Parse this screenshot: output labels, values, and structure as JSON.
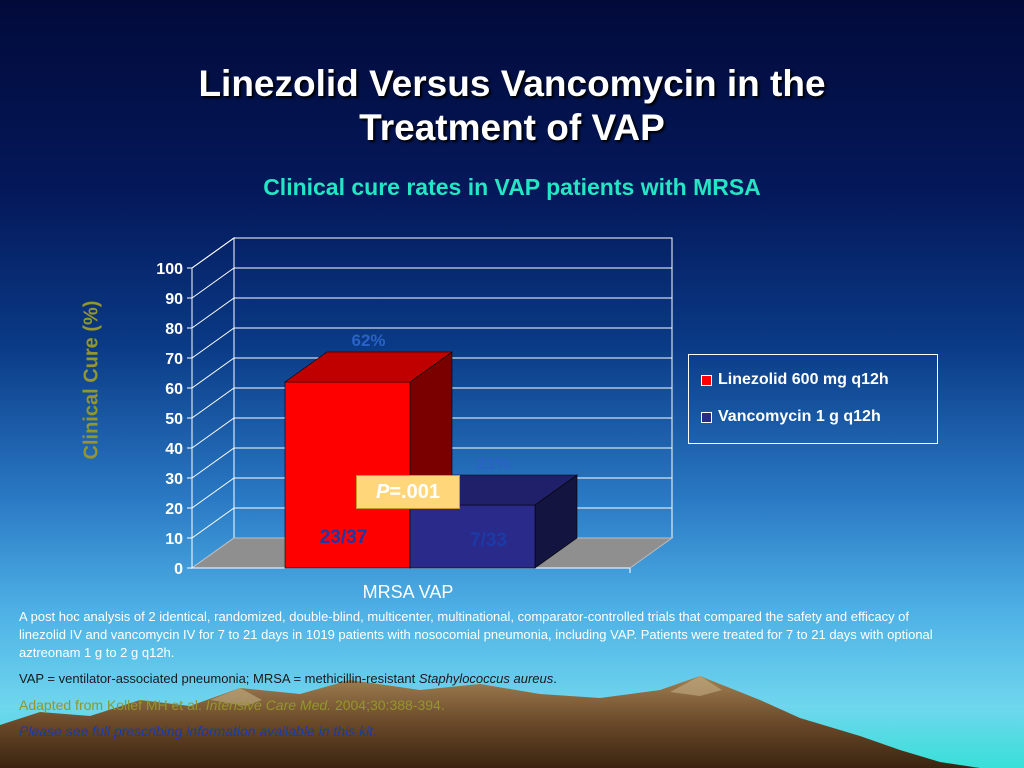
{
  "slide": {
    "title_line1": "Linezolid Versus Vancomycin in the",
    "title_line2": "Treatment of VAP",
    "subtitle": "Clinical cure rates in VAP patients with MRSA",
    "p_value_label": "P",
    "p_value_rest": "=.001"
  },
  "chart_data": {
    "type": "bar",
    "title": "",
    "xlabel": "",
    "ylabel": "Clinical Cure (%)",
    "ylim": [
      0,
      100
    ],
    "yticks": [
      "0",
      "10",
      "20",
      "30",
      "40",
      "50",
      "60",
      "70",
      "80",
      "90",
      "100"
    ],
    "categories": [
      "MRSA VAP"
    ],
    "series": [
      {
        "name": "Linezolid 600 mg q12h",
        "values": [
          62
        ],
        "data_label": "62%",
        "count_label": "23/37",
        "color": "#ff0000"
      },
      {
        "name": "Vancomycin 1 g q12h",
        "values": [
          21
        ],
        "data_label": "21%",
        "count_label": "7/33",
        "color": "#2a2a8a"
      }
    ],
    "grid": true,
    "legend": "right"
  },
  "notes": {
    "methods": "A post hoc analysis of 2 identical, randomized, double-blind, multicenter, multinational, comparator-controlled trials that compared the safety and efficacy of linezolid IV and vancomycin IV for 7 to 21 days in 1019 patients with nosocomial pneumonia, including VAP. Patients were treated for 7 to 21 days with optional aztreonam 1 g to 2 g q12h.",
    "abbrev_text": "VAP = ventilator-associated pneumonia; MRSA = methicillin-resistant ",
    "abbrev_italic": "Staphylococcus aureus",
    "abbrev_end": ".",
    "source_prefix": "Adapted from Kollef MH et al. ",
    "source_journal": "Intensive Care Med.",
    "source_suffix": " 2004;30:388-394.",
    "prescribing": "Please see full prescribing information available in this kit."
  }
}
